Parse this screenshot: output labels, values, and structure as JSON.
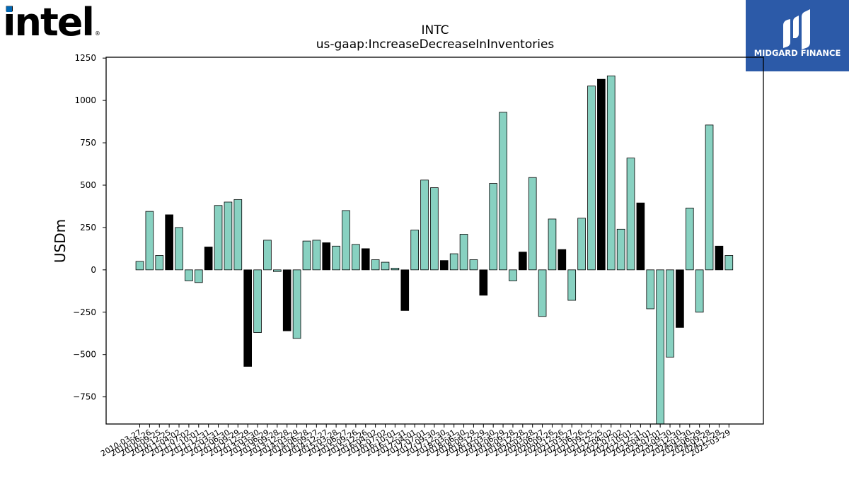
{
  "logo": {
    "text": "intel",
    "mark": "®"
  },
  "badge": {
    "name": "MIDGARD FINANCE",
    "icon": "midgard-logo-icon"
  },
  "colors": {
    "bar_regular": "#88d1c1",
    "bar_highlight": "#000000",
    "badge_bg": "#2c5aa8",
    "intel_blue": "#0068b5"
  },
  "chart_data": {
    "type": "bar",
    "title": "INTC",
    "subtitle": "us-gaap:IncreaseDecreaseInInventories",
    "xlabel": "",
    "ylabel": "USDm",
    "ylim": [
      -910,
      1255
    ],
    "yticks": [
      -750,
      -500,
      -250,
      0,
      250,
      500,
      750,
      1000,
      1250
    ],
    "grid": false,
    "legend": "none",
    "categories": [
      "2010-03-27",
      "2010-06-26",
      "2010-09-25",
      "2010-12-25",
      "2011-04-02",
      "2011-07-02",
      "2011-10-01",
      "2011-12-31",
      "2012-03-31",
      "2012-06-30",
      "2012-09-29",
      "2012-12-29",
      "2013-03-30",
      "2013-06-29",
      "2013-09-28",
      "2013-12-28",
      "2014-03-29",
      "2014-06-28",
      "2014-09-27",
      "2014-12-27",
      "2015-03-28",
      "2015-06-27",
      "2015-09-26",
      "2015-12-26",
      "2016-04-02",
      "2016-07-02",
      "2016-10-01",
      "2016-12-31",
      "2017-04-01",
      "2017-07-01",
      "2017-09-30",
      "2017-12-30",
      "2018-03-31",
      "2018-06-30",
      "2018-09-29",
      "2018-12-29",
      "2019-03-30",
      "2019-06-29",
      "2019-09-28",
      "2019-12-28",
      "2020-03-28",
      "2020-06-27",
      "2020-09-26",
      "2020-12-26",
      "2021-03-27",
      "2021-06-26",
      "2021-09-25",
      "2021-12-25",
      "2022-04-02",
      "2022-07-02",
      "2022-10-01",
      "2022-12-31",
      "2023-04-01",
      "2023-07-01",
      "2023-09-30",
      "2023-12-30",
      "2024-03-30",
      "2024-06-29",
      "2024-09-28",
      "2024-12-28",
      "2025-03-29"
    ],
    "tick_labels": [
      "2010-03-27",
      "2010-06-26",
      "2010-09-25",
      "2010-12-25",
      "2011-04-02",
      "2011-07-02",
      "2011-10-01",
      "2011-12-31",
      "2012-03-31",
      "2012-06-30",
      "2012-09-29",
      "2012-12-29",
      "2013-03-30",
      "2013-06-29",
      "2013-09-28",
      "2013-12-28",
      "2014-03-29",
      "2014-06-28",
      "2014-09-27",
      "2014-12-27",
      "2015-03-28",
      "2015-06-27",
      "2015-09-26",
      "2015-12-26",
      "2016-04-02",
      "2016-07-02",
      "2016-10-01",
      "2016-12-31",
      "2017-04-01",
      "2017-07-01",
      "2017-09-30",
      "2017-12-30",
      "2018-03-31",
      "2018-06-30",
      "2018-09-29",
      "2018-12-29",
      "2019-03-30",
      "2019-06-29",
      "2019-09-28",
      "2019-12-28",
      "2020-03-28",
      "2020-06-27",
      "2020-09-26",
      "2020-12-26",
      "2021-03-27",
      "2021-06-26",
      "2021-09-25",
      "2021-12-25",
      "2022-04-02",
      "2022-07-02",
      "2022-10-01",
      "2022-12-31",
      "2023-04-01",
      "2023-07-01",
      "2023-09-30",
      "2023-12-30",
      "2024-03-30",
      "2024-06-29",
      "2024-09-28",
      "2024-12-28",
      "2025-03-29"
    ],
    "values": [
      50,
      345,
      85,
      325,
      250,
      -65,
      -75,
      135,
      380,
      400,
      415,
      -570,
      -370,
      175,
      -10,
      -360,
      -405,
      170,
      175,
      160,
      140,
      350,
      150,
      125,
      60,
      45,
      10,
      -240,
      235,
      530,
      485,
      55,
      95,
      210,
      60,
      -150,
      510,
      930,
      -65,
      105,
      545,
      -275,
      300,
      120,
      -180,
      305,
      1085,
      1125,
      1145,
      240,
      660,
      395,
      -230,
      -910,
      -515,
      -340,
      365,
      -250,
      855,
      140,
      85
    ],
    "highlight_categories": [
      "2010-12-25",
      "2011-12-31",
      "2012-12-29",
      "2013-12-28",
      "2014-12-27",
      "2015-12-26",
      "2016-12-31",
      "2017-12-30",
      "2018-12-29",
      "2019-12-28",
      "2020-12-26",
      "2021-12-25",
      "2022-12-31",
      "2023-12-30",
      "2024-12-28"
    ]
  }
}
